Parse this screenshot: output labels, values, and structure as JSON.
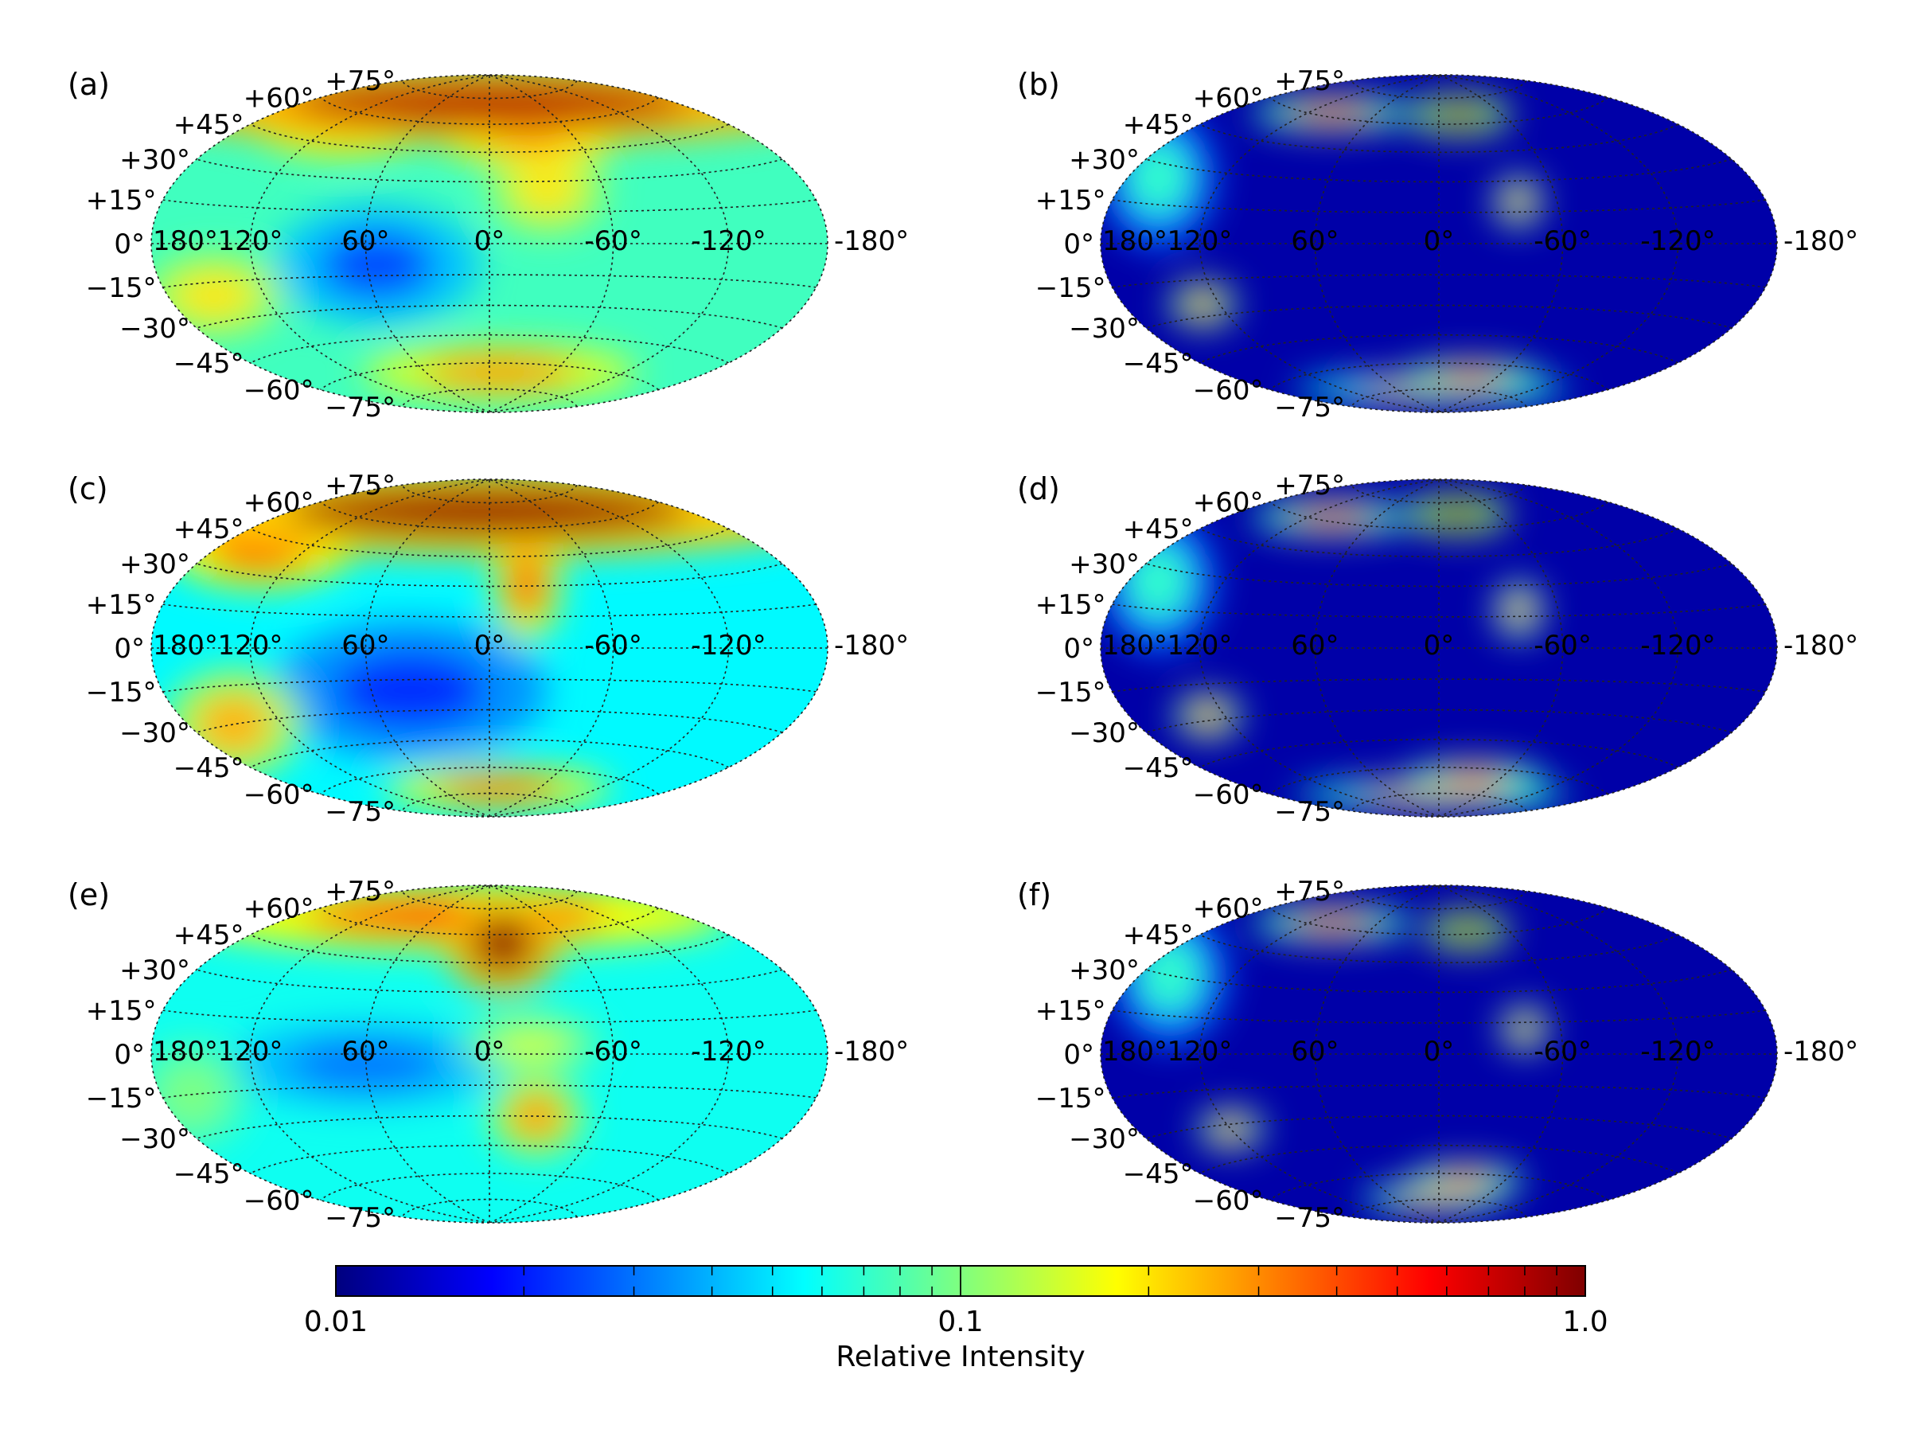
{
  "chart_data": {
    "type": "heatmap",
    "projection": "hammer",
    "grid": true,
    "longitude_labels": [
      "180°",
      "120°",
      "60°",
      "0°",
      "-60°",
      "-120°",
      "-180°"
    ],
    "latitude_labels": [
      "+75°",
      "+60°",
      "+45°",
      "+30°",
      "+15°",
      "0°",
      "−15°",
      "−30°",
      "−45°",
      "−60°",
      "−75°"
    ],
    "colorbar": {
      "title": "Relative Intensity",
      "scale": "log",
      "range": [
        0.01,
        1.0
      ],
      "tick_labels": [
        "0.01",
        "0.1",
        "1.0"
      ],
      "colormap": [
        "#00007f",
        "#0000ff",
        "#007fff",
        "#00ffff",
        "#7fff7f",
        "#ffff00",
        "#ff7f00",
        "#ff0000",
        "#7f0000"
      ]
    },
    "panels": [
      {
        "label": "(a)",
        "base_intensity": 0.075,
        "features": [
          {
            "lon": 0,
            "lat": 72,
            "intensity": 0.8,
            "spread_lon": 160,
            "spread_lat": 14
          },
          {
            "lon": 120,
            "lat": 55,
            "intensity": 0.45,
            "spread_lon": 40,
            "spread_lat": 12
          },
          {
            "lon": -30,
            "lat": 55,
            "intensity": 0.45,
            "spread_lon": 40,
            "spread_lat": 12
          },
          {
            "lon": -30,
            "lat": 25,
            "intensity": 0.2,
            "spread_lon": 25,
            "spread_lat": 15
          },
          {
            "lon": 55,
            "lat": -10,
            "intensity": 0.025,
            "spread_lon": 45,
            "spread_lat": 22
          },
          {
            "lon": 150,
            "lat": -20,
            "intensity": 0.2,
            "spread_lon": 30,
            "spread_lat": 15
          },
          {
            "lon": -10,
            "lat": -65,
            "intensity": 0.3,
            "spread_lon": 60,
            "spread_lat": 10
          }
        ]
      },
      {
        "label": "(b)",
        "base_intensity": 0.012,
        "features": [
          {
            "lon": -20,
            "lat": 65,
            "intensity": 0.9,
            "spread_lon": 22,
            "spread_lat": 7
          },
          {
            "lon": 100,
            "lat": 62,
            "intensity": 0.5,
            "spread_lon": 35,
            "spread_lat": 6
          },
          {
            "lon": -40,
            "lat": 20,
            "intensity": 0.5,
            "spread_lon": 10,
            "spread_lat": 9
          },
          {
            "lon": 130,
            "lat": -25,
            "intensity": 0.6,
            "spread_lon": 14,
            "spread_lat": 8
          },
          {
            "lon": -35,
            "lat": -68,
            "intensity": 0.5,
            "spread_lon": 30,
            "spread_lat": 6
          },
          {
            "lon": 10,
            "lat": -75,
            "intensity": 0.3,
            "spread_lon": 60,
            "spread_lat": 5
          },
          {
            "lon": 160,
            "lat": 25,
            "intensity": 0.07,
            "spread_lon": 25,
            "spread_lat": 25
          }
        ]
      },
      {
        "label": "(c)",
        "base_intensity": 0.055,
        "features": [
          {
            "lon": 0,
            "lat": 70,
            "intensity": 0.9,
            "spread_lon": 160,
            "spread_lat": 16
          },
          {
            "lon": 150,
            "lat": 40,
            "intensity": 0.5,
            "spread_lon": 40,
            "spread_lat": 14
          },
          {
            "lon": -20,
            "lat": 30,
            "intensity": 0.4,
            "spread_lon": 15,
            "spread_lat": 20
          },
          {
            "lon": 40,
            "lat": -20,
            "intensity": 0.022,
            "spread_lon": 60,
            "spread_lat": 25
          },
          {
            "lon": 150,
            "lat": -30,
            "intensity": 0.25,
            "spread_lon": 30,
            "spread_lat": 20
          },
          {
            "lon": -10,
            "lat": -72,
            "intensity": 0.4,
            "spread_lon": 50,
            "spread_lat": 8
          }
        ]
      },
      {
        "label": "(d)",
        "base_intensity": 0.012,
        "features": [
          {
            "lon": -20,
            "lat": 68,
            "intensity": 1.0,
            "spread_lon": 22,
            "spread_lat": 7
          },
          {
            "lon": 100,
            "lat": 62,
            "intensity": 0.45,
            "spread_lon": 35,
            "spread_lat": 6
          },
          {
            "lon": -40,
            "lat": 18,
            "intensity": 0.45,
            "spread_lon": 10,
            "spread_lat": 10
          },
          {
            "lon": 130,
            "lat": -28,
            "intensity": 0.55,
            "spread_lon": 14,
            "spread_lat": 8
          },
          {
            "lon": -35,
            "lat": -66,
            "intensity": 0.45,
            "spread_lon": 30,
            "spread_lat": 6
          },
          {
            "lon": 10,
            "lat": -76,
            "intensity": 0.35,
            "spread_lon": 60,
            "spread_lat": 5
          },
          {
            "lon": 160,
            "lat": 25,
            "intensity": 0.07,
            "spread_lon": 25,
            "spread_lat": 25
          }
        ]
      },
      {
        "label": "(e)",
        "base_intensity": 0.06,
        "features": [
          {
            "lon": -10,
            "lat": 55,
            "intensity": 0.95,
            "spread_lon": 25,
            "spread_lat": 18
          },
          {
            "lon": 40,
            "lat": 70,
            "intensity": 0.5,
            "spread_lon": 120,
            "spread_lat": 12
          },
          {
            "lon": -25,
            "lat": -30,
            "intensity": 0.3,
            "spread_lon": 20,
            "spread_lat": 14
          },
          {
            "lon": 60,
            "lat": -5,
            "intensity": 0.03,
            "spread_lon": 60,
            "spread_lat": 15
          },
          {
            "lon": -20,
            "lat": 5,
            "intensity": 0.15,
            "spread_lon": 30,
            "spread_lat": 10
          },
          {
            "lon": 160,
            "lat": -15,
            "intensity": 0.1,
            "spread_lon": 25,
            "spread_lat": 20
          }
        ]
      },
      {
        "label": "(f)",
        "base_intensity": 0.012,
        "features": [
          {
            "lon": -25,
            "lat": 62,
            "intensity": 0.95,
            "spread_lon": 18,
            "spread_lat": 7
          },
          {
            "lon": 100,
            "lat": 62,
            "intensity": 0.45,
            "spread_lon": 35,
            "spread_lat": 6
          },
          {
            "lon": -42,
            "lat": 12,
            "intensity": 0.5,
            "spread_lon": 10,
            "spread_lat": 8
          },
          {
            "lon": 120,
            "lat": -32,
            "intensity": 0.5,
            "spread_lon": 14,
            "spread_lat": 7
          },
          {
            "lon": -25,
            "lat": -64,
            "intensity": 0.45,
            "spread_lon": 25,
            "spread_lat": 6
          },
          {
            "lon": 10,
            "lat": -74,
            "intensity": 0.4,
            "spread_lon": 30,
            "spread_lat": 5
          },
          {
            "lon": 160,
            "lat": 30,
            "intensity": 0.07,
            "spread_lon": 25,
            "spread_lat": 25
          }
        ]
      }
    ]
  }
}
